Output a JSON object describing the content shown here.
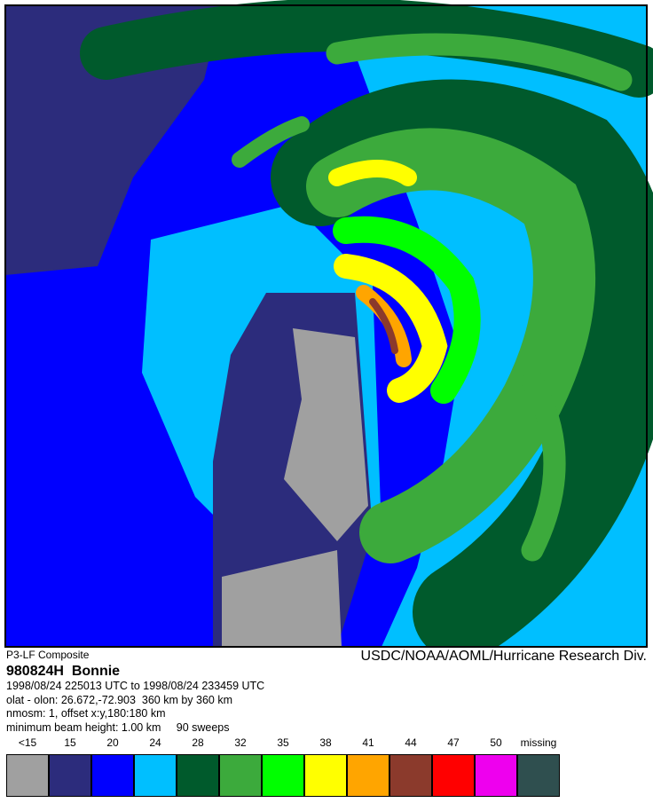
{
  "header": {
    "source": "P3-LF Composite",
    "agency": "USDC/NOAA/AOML/Hurricane Research Div.",
    "flight": "980824H  Bonnie"
  },
  "info": [
    "1998/08/24 225013 UTC to 1998/08/24 233459 UTC",
    "olat - olon: 26.672,-72.903  360 km by 360 km",
    "nmosm: 1, offset x:y,180:180 km",
    "minimum beam height: 1.00 km     90 sweeps"
  ],
  "legend": [
    {
      "label": "<15",
      "color": "#a0a0a0"
    },
    {
      "label": "15",
      "color": "#2c2c7c"
    },
    {
      "label": "20",
      "color": "#0000ff"
    },
    {
      "label": "24",
      "color": "#00bfff"
    },
    {
      "label": "28",
      "color": "#005a2c"
    },
    {
      "label": "32",
      "color": "#3caa3c"
    },
    {
      "label": "35",
      "color": "#00ff00"
    },
    {
      "label": "38",
      "color": "#ffff00"
    },
    {
      "label": "41",
      "color": "#ffa500"
    },
    {
      "label": "44",
      "color": "#8b3a2c"
    },
    {
      "label": "47",
      "color": "#ff0000"
    },
    {
      "label": "50",
      "color": "#ee00ee"
    },
    {
      "label": "missing",
      "color": "#2f4f4f"
    }
  ]
}
